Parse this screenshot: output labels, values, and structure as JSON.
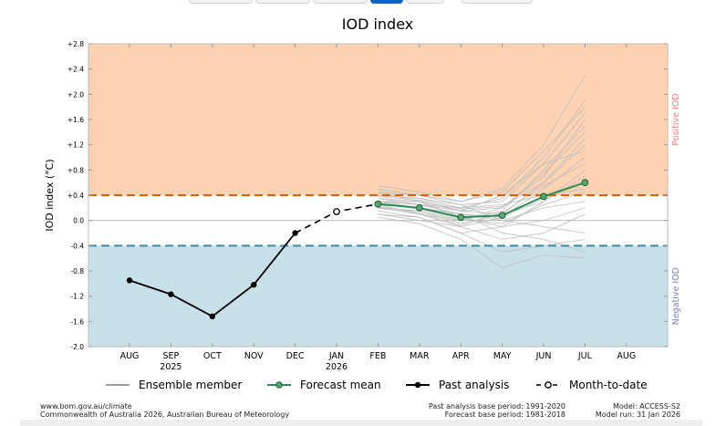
{
  "tabs": [
    {
      "label": "",
      "active": false
    },
    {
      "label": "",
      "active": false
    },
    {
      "label": "",
      "active": false
    },
    {
      "label": "",
      "active": true
    },
    {
      "label": "",
      "active": false
    },
    {
      "label": "",
      "active": false
    }
  ],
  "footer": {
    "source_url": "www.bom.gov.au/climate",
    "copyright": "Commonwealth of Australia 2026, Australian Bureau of Meteorology",
    "past_base": "Past analysis base period: 1991-2020",
    "forecast_base": "Forecast base period: 1981-2018",
    "model": "Model: ACCESS-S2",
    "model_run": "Model run: 31 Jan 2026"
  },
  "colors": {
    "positive_zone": "#fdd3b3",
    "negative_zone": "#c8e1e8",
    "positive_threshold": "#d9610b",
    "negative_threshold": "#3d8aa3",
    "forecast_mean": "#2e8b57",
    "forecast_marker": "#5aa66e",
    "ensemble": "#bdbdbd",
    "past": "#000000",
    "positive_label": "#f08080",
    "negative_label": "#8080b8"
  },
  "chart_data": {
    "type": "line",
    "title": "IOD index",
    "xlabel": "",
    "ylabel": "IOD index (°C)",
    "ylim": [
      -2.0,
      2.8
    ],
    "yticks": [
      2.8,
      2.4,
      2.0,
      1.6,
      1.2,
      0.8,
      0.4,
      0.0,
      -0.4,
      -0.8,
      -1.2,
      -1.6,
      -2.0
    ],
    "ytick_labels": [
      "+2.8",
      "+2.4",
      "+2.0",
      "+1.6",
      "+1.2",
      "+0.8",
      "+0.4",
      "0.0",
      "-0.4",
      "-0.8",
      "-1.2",
      "-1.6",
      "-2.0"
    ],
    "x_months": [
      "AUG",
      "SEP",
      "OCT",
      "NOV",
      "DEC",
      "JAN",
      "FEB",
      "MAR",
      "APR",
      "MAY",
      "JUN",
      "JUL",
      "AUG"
    ],
    "x_years": [
      {
        "index": 1,
        "label": "2025"
      },
      {
        "index": 5,
        "label": "2026"
      }
    ],
    "thresholds": {
      "positive": 0.4,
      "negative": -0.4
    },
    "zone_labels": {
      "positive": "Positive IOD",
      "negative": "Negative IOD"
    },
    "series": [
      {
        "name": "Past analysis",
        "style": "past",
        "x": [
          0,
          1,
          2,
          3,
          4
        ],
        "values": [
          -0.95,
          -1.17,
          -1.52,
          -1.02,
          -0.2
        ]
      },
      {
        "name": "Month-to-date",
        "style": "mtd",
        "x": [
          5
        ],
        "values": [
          0.14
        ]
      },
      {
        "name": "Forecast mean",
        "style": "forecast",
        "x": [
          6,
          7,
          8,
          9,
          10,
          11
        ],
        "values": [
          0.26,
          0.2,
          0.05,
          0.08,
          0.38,
          0.6
        ]
      }
    ],
    "ensemble": {
      "name": "Ensemble member",
      "x": [
        6,
        7,
        8,
        9,
        10,
        11
      ],
      "members": [
        [
          0.45,
          0.4,
          0.25,
          0.3,
          0.9,
          1.7
        ],
        [
          0.35,
          0.3,
          0.15,
          0.2,
          0.75,
          1.4
        ],
        [
          0.55,
          0.45,
          0.3,
          0.5,
          1.2,
          2.3
        ],
        [
          0.3,
          0.25,
          0.1,
          0.05,
          0.5,
          1.0
        ],
        [
          0.2,
          0.15,
          -0.05,
          0.1,
          0.6,
          1.2
        ],
        [
          0.1,
          0.05,
          -0.2,
          -0.1,
          0.3,
          0.8
        ],
        [
          0.4,
          0.35,
          0.2,
          0.25,
          0.4,
          0.5
        ],
        [
          0.3,
          0.2,
          0.1,
          0.0,
          0.2,
          0.3
        ],
        [
          0.25,
          0.1,
          -0.1,
          -0.3,
          -0.2,
          0.1
        ],
        [
          0.15,
          0.05,
          -0.2,
          -0.5,
          -0.4,
          -0.3
        ],
        [
          0.05,
          -0.05,
          -0.3,
          -0.75,
          -0.55,
          -0.6
        ],
        [
          0.2,
          0.15,
          0.0,
          0.2,
          0.7,
          1.6
        ],
        [
          0.35,
          0.25,
          0.2,
          0.35,
          1.0,
          1.9
        ],
        [
          0.3,
          0.3,
          0.05,
          -0.1,
          0.0,
          0.2
        ],
        [
          0.25,
          0.2,
          0.1,
          -0.2,
          -0.3,
          -0.5
        ],
        [
          0.45,
          0.3,
          0.15,
          0.1,
          0.3,
          0.7
        ],
        [
          0.2,
          0.1,
          0.0,
          0.15,
          0.8,
          1.5
        ],
        [
          0.3,
          0.25,
          0.15,
          0.4,
          0.9,
          1.1
        ],
        [
          0.4,
          0.35,
          0.25,
          0.0,
          -0.1,
          -0.2
        ],
        [
          0.1,
          0.0,
          -0.1,
          0.05,
          0.35,
          0.6
        ],
        [
          0.5,
          0.4,
          0.3,
          0.45,
          1.1,
          1.8
        ],
        [
          0.28,
          0.18,
          0.02,
          -0.05,
          0.25,
          0.45
        ],
        [
          0.22,
          0.12,
          -0.08,
          0.12,
          0.55,
          0.9
        ],
        [
          0.38,
          0.32,
          0.18,
          0.22,
          0.6,
          1.3
        ]
      ]
    },
    "legend": {
      "position": "bottom",
      "entries": [
        "Ensemble member",
        "Forecast mean",
        "Past analysis",
        "Month-to-date"
      ]
    }
  }
}
